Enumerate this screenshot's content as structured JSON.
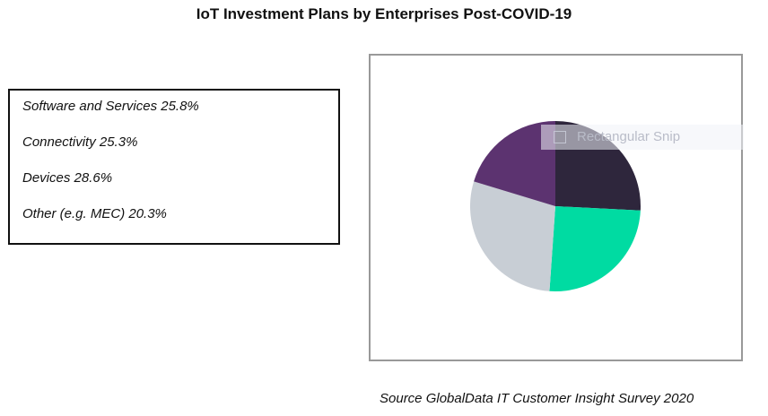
{
  "title": "IoT Investment Plans by Enterprises Post-COVID-19",
  "source": "Source GlobalData IT Customer Insight Survey 2020",
  "overlay": {
    "label": "Rectangular Snip"
  },
  "chart_data": {
    "type": "pie",
    "title": "IoT Investment Plans by Enterprises Post-COVID-19",
    "categories": [
      "Software and Services",
      "Connectivity",
      "Devices",
      "Other (e.g. MEC)"
    ],
    "values": [
      25.8,
      25.3,
      28.6,
      20.3
    ],
    "unit": "%",
    "colors": [
      "#2e263c",
      "#00dba2",
      "#c8ced5",
      "#5c3370"
    ],
    "legend": [
      {
        "text": "Software and Services 25.8%"
      },
      {
        "text": "Connectivity 25.3%"
      },
      {
        "text": "Devices 28.6%"
      },
      {
        "text": "Other (e.g. MEC) 20.3%"
      }
    ],
    "legend_placement": "left"
  }
}
